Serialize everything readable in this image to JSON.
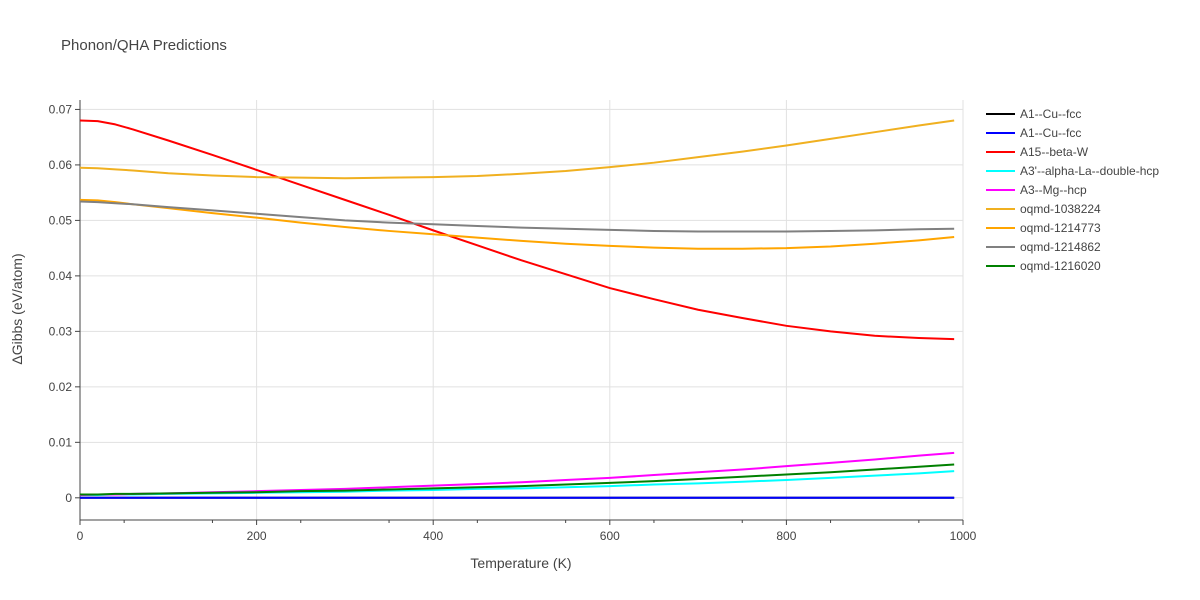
{
  "chart_data": {
    "type": "line",
    "title": "Phonon/QHA Predictions",
    "xlabel": "Temperature (K)",
    "ylabel": "ΔGibbs (eV/atom)",
    "xlim": [
      0,
      1000
    ],
    "ylim": [
      -0.004,
      0.0717
    ],
    "xticks": [
      0,
      200,
      400,
      600,
      800,
      1000
    ],
    "yticks": [
      0,
      0.01,
      0.02,
      0.03,
      0.04,
      0.05,
      0.06,
      0.07
    ],
    "ytick_labels": [
      "0",
      "0.01",
      "0.02",
      "0.03",
      "0.04",
      "0.05",
      "0.06",
      "0.07"
    ],
    "grid": true,
    "legend_position": "right",
    "x": [
      0,
      20,
      40,
      60,
      100,
      150,
      200,
      250,
      300,
      350,
      400,
      450,
      500,
      550,
      600,
      650,
      700,
      750,
      800,
      850,
      900,
      950,
      990
    ],
    "series": [
      {
        "name": "A1--Cu--fcc",
        "color": "#000000",
        "values": [
          0,
          0,
          0,
          0,
          0,
          0,
          0,
          0,
          0,
          0,
          0,
          0,
          0,
          0,
          0,
          0,
          0,
          0,
          0,
          0,
          0,
          0,
          0
        ]
      },
      {
        "name": "A1--Cu--fcc",
        "color": "#0000ff",
        "values": [
          0,
          0,
          0,
          0,
          0,
          0,
          0,
          0,
          0,
          0,
          0,
          0,
          0,
          0,
          0,
          0,
          0,
          0,
          0,
          0,
          0,
          0,
          0
        ]
      },
      {
        "name": "A15--beta-W",
        "color": "#ff0000",
        "values": [
          0.068,
          0.0679,
          0.0673,
          0.0664,
          0.0644,
          0.0618,
          0.0591,
          0.0564,
          0.0537,
          0.051,
          0.0482,
          0.0455,
          0.0428,
          0.0403,
          0.0378,
          0.0358,
          0.0339,
          0.0324,
          0.031,
          0.03,
          0.0292,
          0.0288,
          0.0286
        ]
      },
      {
        "name": "A3'--alpha-La--double-hcp",
        "color": "#00ffff",
        "values": [
          0.0005,
          0.0005,
          0.0006,
          0.0006,
          0.0007,
          0.0008,
          0.0009,
          0.001,
          0.0011,
          0.0013,
          0.0014,
          0.0016,
          0.0017,
          0.0019,
          0.0021,
          0.0024,
          0.0026,
          0.0029,
          0.0032,
          0.0036,
          0.004,
          0.0044,
          0.0048
        ]
      },
      {
        "name": "A3--Mg--hcp",
        "color": "#ff00ff",
        "values": [
          0.0005,
          0.0006,
          0.0006,
          0.0007,
          0.0008,
          0.001,
          0.0012,
          0.0014,
          0.0016,
          0.0019,
          0.0022,
          0.0025,
          0.0028,
          0.0032,
          0.0036,
          0.0041,
          0.0046,
          0.0051,
          0.0057,
          0.0063,
          0.0069,
          0.0076,
          0.0081
        ]
      },
      {
        "name": "oqmd-1038224",
        "color": "#f0b020",
        "values": [
          0.0595,
          0.0594,
          0.0592,
          0.059,
          0.0585,
          0.0581,
          0.0578,
          0.0577,
          0.0576,
          0.0577,
          0.0578,
          0.058,
          0.0584,
          0.0589,
          0.0596,
          0.0604,
          0.0614,
          0.0624,
          0.0635,
          0.0647,
          0.0659,
          0.0671,
          0.068
        ]
      },
      {
        "name": "oqmd-1214773",
        "color": "#ffa500",
        "values": [
          0.0537,
          0.0536,
          0.0533,
          0.0529,
          0.0522,
          0.0513,
          0.0505,
          0.0496,
          0.0488,
          0.0481,
          0.0475,
          0.0469,
          0.0463,
          0.0458,
          0.0454,
          0.0451,
          0.0449,
          0.0449,
          0.045,
          0.0453,
          0.0458,
          0.0464,
          0.047
        ]
      },
      {
        "name": "oqmd-1214862",
        "color": "#808080",
        "values": [
          0.0534,
          0.0533,
          0.0531,
          0.0529,
          0.0524,
          0.0518,
          0.0512,
          0.0506,
          0.05,
          0.0496,
          0.0493,
          0.049,
          0.0487,
          0.0485,
          0.0483,
          0.0481,
          0.048,
          0.048,
          0.048,
          0.0481,
          0.0482,
          0.0484,
          0.0485
        ]
      },
      {
        "name": "oqmd-1216020",
        "color": "#008000",
        "values": [
          0.0006,
          0.0006,
          0.0007,
          0.0007,
          0.0008,
          0.0009,
          0.001,
          0.0012,
          0.0013,
          0.0015,
          0.0017,
          0.0019,
          0.0021,
          0.0024,
          0.0027,
          0.003,
          0.0034,
          0.0038,
          0.0042,
          0.0046,
          0.0051,
          0.0056,
          0.006
        ]
      }
    ]
  }
}
